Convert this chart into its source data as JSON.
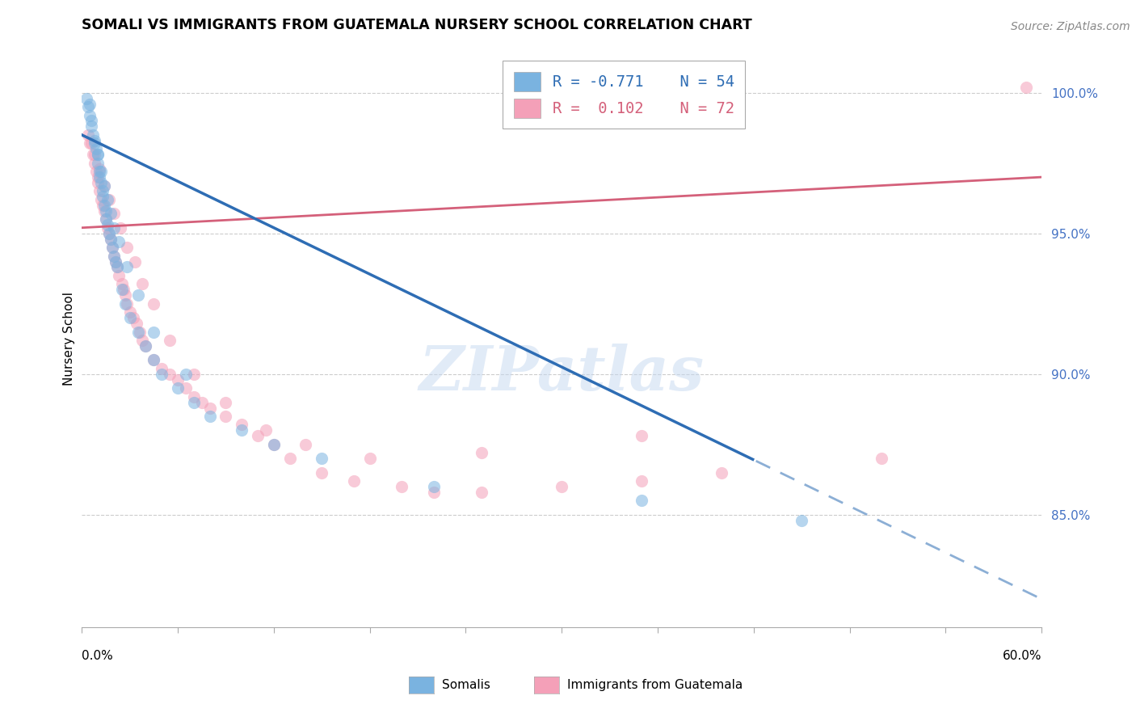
{
  "title": "SOMALI VS IMMIGRANTS FROM GUATEMALA NURSERY SCHOOL CORRELATION CHART",
  "source": "Source: ZipAtlas.com",
  "ylabel": "Nursery School",
  "blue_r": "R = -0.771",
  "blue_n": "N = 54",
  "pink_r": "R =  0.102",
  "pink_n": "N = 72",
  "blue_color": "#7ab3e0",
  "pink_color": "#f4a0b8",
  "blue_line_color": "#2e6db4",
  "pink_line_color": "#d4607a",
  "watermark": "ZIPatlas",
  "xmin": 0.0,
  "xmax": 60.0,
  "ymin": 81.0,
  "ymax": 101.5,
  "right_yticks": [
    85.0,
    90.0,
    95.0,
    100.0
  ],
  "blue_line_x0": 0.0,
  "blue_line_y0": 98.5,
  "blue_line_x1": 60.0,
  "blue_line_y1": 82.0,
  "blue_line_solid_end": 42.0,
  "pink_line_x0": 0.0,
  "pink_line_y0": 95.2,
  "pink_line_x1": 60.0,
  "pink_line_y1": 97.0,
  "blue_x": [
    0.3,
    0.4,
    0.5,
    0.6,
    0.7,
    0.8,
    0.9,
    1.0,
    1.0,
    1.1,
    1.1,
    1.2,
    1.3,
    1.3,
    1.4,
    1.5,
    1.5,
    1.6,
    1.7,
    1.8,
    1.9,
    2.0,
    2.1,
    2.2,
    2.5,
    2.7,
    3.0,
    3.5,
    4.0,
    4.5,
    5.0,
    6.0,
    7.0,
    8.0,
    10.0,
    12.0,
    15.0,
    22.0,
    35.0,
    45.0,
    0.5,
    0.6,
    0.8,
    1.0,
    1.2,
    1.4,
    1.6,
    1.8,
    2.0,
    2.3,
    2.8,
    3.5,
    4.5,
    6.5
  ],
  "blue_y": [
    99.8,
    99.5,
    99.2,
    98.8,
    98.5,
    98.2,
    98.0,
    97.8,
    97.5,
    97.2,
    97.0,
    96.8,
    96.5,
    96.3,
    96.0,
    95.8,
    95.5,
    95.3,
    95.0,
    94.8,
    94.5,
    94.2,
    94.0,
    93.8,
    93.0,
    92.5,
    92.0,
    91.5,
    91.0,
    90.5,
    90.0,
    89.5,
    89.0,
    88.5,
    88.0,
    87.5,
    87.0,
    86.0,
    85.5,
    84.8,
    99.6,
    99.0,
    98.3,
    97.8,
    97.2,
    96.7,
    96.2,
    95.7,
    95.2,
    94.7,
    93.8,
    92.8,
    91.5,
    90.0
  ],
  "pink_x": [
    0.4,
    0.5,
    0.7,
    0.8,
    0.9,
    1.0,
    1.0,
    1.1,
    1.2,
    1.3,
    1.4,
    1.5,
    1.6,
    1.7,
    1.8,
    1.9,
    2.0,
    2.1,
    2.2,
    2.3,
    2.5,
    2.6,
    2.7,
    2.8,
    3.0,
    3.2,
    3.4,
    3.6,
    3.8,
    4.0,
    4.5,
    5.0,
    5.5,
    6.0,
    6.5,
    7.0,
    7.5,
    8.0,
    9.0,
    10.0,
    11.0,
    12.0,
    13.0,
    15.0,
    17.0,
    20.0,
    22.0,
    25.0,
    30.0,
    35.0,
    40.0,
    50.0,
    59.0,
    0.6,
    0.8,
    1.1,
    1.4,
    1.7,
    2.0,
    2.4,
    2.8,
    3.3,
    3.8,
    4.5,
    5.5,
    7.0,
    9.0,
    11.5,
    14.0,
    18.0,
    25.0,
    35.0
  ],
  "pink_y": [
    98.5,
    98.2,
    97.8,
    97.5,
    97.2,
    97.0,
    96.8,
    96.5,
    96.2,
    96.0,
    95.8,
    95.5,
    95.2,
    95.0,
    94.8,
    94.5,
    94.2,
    94.0,
    93.8,
    93.5,
    93.2,
    93.0,
    92.8,
    92.5,
    92.2,
    92.0,
    91.8,
    91.5,
    91.2,
    91.0,
    90.5,
    90.2,
    90.0,
    89.8,
    89.5,
    89.2,
    89.0,
    88.8,
    88.5,
    88.2,
    87.8,
    87.5,
    87.0,
    86.5,
    86.2,
    86.0,
    85.8,
    85.8,
    86.0,
    86.2,
    86.5,
    87.0,
    100.2,
    98.2,
    97.8,
    97.3,
    96.7,
    96.2,
    95.7,
    95.2,
    94.5,
    94.0,
    93.2,
    92.5,
    91.2,
    90.0,
    89.0,
    88.0,
    87.5,
    87.0,
    87.2,
    87.8
  ]
}
